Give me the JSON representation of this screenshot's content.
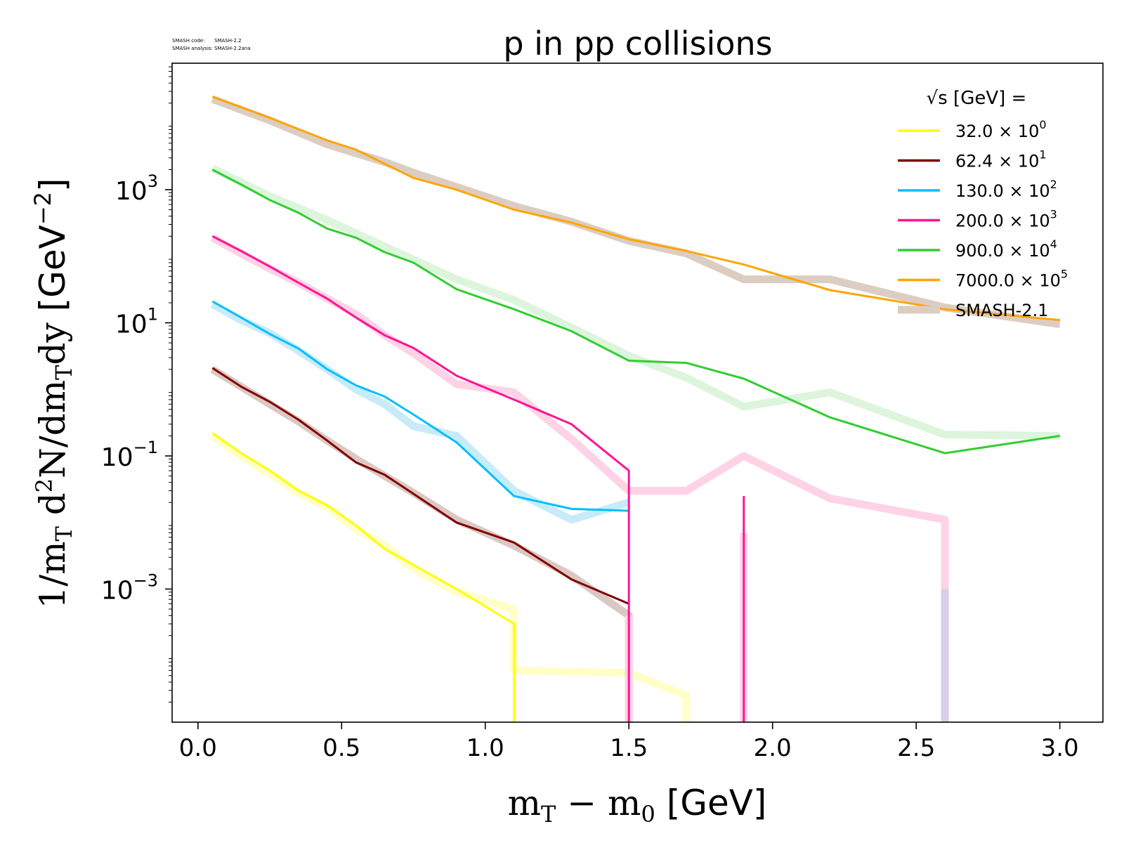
{
  "chart_data": {
    "type": "line",
    "title": "p in pp collisions",
    "watermark": {
      "line1_label": "SMASH code:",
      "line1_value": "SMASH-2.2",
      "line2_label": "SMASH analysis:",
      "line2_value": "SMASH-2.2ana"
    },
    "xlabel": "m_T − m_0 [GeV]",
    "ylabel": "1/m_T d²N/dm_T dy [GeV⁻²]",
    "xlim": [
      -0.09,
      3.15
    ],
    "ylim_log10": [
      -5,
      4.9
    ],
    "y_scale": "log",
    "x_ticks": [
      "0.0",
      "0.5",
      "1.0",
      "1.5",
      "2.0",
      "2.5",
      "3.0"
    ],
    "x_tick_values": [
      0,
      0.5,
      1.0,
      1.5,
      2.0,
      2.5,
      3.0
    ],
    "y_ticks": [
      {
        "base": "10",
        "exp": "3",
        "value": 3
      },
      {
        "base": "10",
        "exp": "1",
        "value": 1
      },
      {
        "base": "10",
        "exp": "−1",
        "value": -1
      },
      {
        "base": "10",
        "exp": "−3",
        "value": -3
      }
    ],
    "legend": {
      "position": "upper-right",
      "title": "√s [GeV] ="
    },
    "series": [
      {
        "name": "32.0 × 10",
        "exp": "0",
        "color": "#ffff00",
        "x": [
          0.05,
          0.15,
          0.25,
          0.35,
          0.45,
          0.55,
          0.65,
          0.75,
          0.9,
          1.1,
          1.1
        ],
        "y": [
          0.22,
          0.11,
          0.06,
          0.03,
          0.018,
          0.009,
          0.004,
          0.0023,
          0.001,
          0.0003,
          1e-05
        ]
      },
      {
        "name": "62.4 × 10",
        "exp": "1",
        "color": "#800000",
        "x": [
          0.05,
          0.15,
          0.25,
          0.35,
          0.45,
          0.55,
          0.65,
          0.75,
          0.9,
          1.1,
          1.3,
          1.5
        ],
        "y": [
          2.1,
          1.1,
          0.65,
          0.35,
          0.17,
          0.08,
          0.052,
          0.027,
          0.01,
          0.005,
          0.0014,
          0.0006
        ]
      },
      {
        "name": "130.0 × 10",
        "exp": "2",
        "color": "#00bfff",
        "x": [
          0.05,
          0.15,
          0.25,
          0.35,
          0.45,
          0.55,
          0.65,
          0.75,
          0.9,
          1.1,
          1.3,
          1.5
        ],
        "y": [
          21,
          12,
          6.8,
          4.1,
          2.0,
          1.15,
          0.78,
          0.42,
          0.16,
          0.025,
          0.016,
          0.015
        ]
      },
      {
        "name": "200.0 × 10",
        "exp": "3",
        "color": "#ff1493",
        "x": [
          0.05,
          0.15,
          0.25,
          0.35,
          0.45,
          0.55,
          0.65,
          0.75,
          0.9,
          1.1,
          1.3,
          1.5,
          1.5
        ],
        "y": [
          200,
          120,
          70,
          40,
          23,
          12,
          6.5,
          4.2,
          1.6,
          0.7,
          0.3,
          0.06,
          1e-05
        ]
      },
      {
        "name": "900.0 × 10",
        "exp": "4",
        "color": "#32cd32",
        "x": [
          0.05,
          0.15,
          0.25,
          0.35,
          0.45,
          0.55,
          0.65,
          0.75,
          0.9,
          1.1,
          1.3,
          1.5,
          1.7,
          1.9,
          2.2,
          2.6,
          3.0
        ],
        "y": [
          2000,
          1200,
          700,
          450,
          260,
          190,
          115,
          80,
          32,
          16,
          7.5,
          2.7,
          2.5,
          1.45,
          0.38,
          0.11,
          0.2
        ]
      },
      {
        "name": "7000.0 × 10",
        "exp": "5",
        "color": "#ffa500",
        "x": [
          0.05,
          0.25,
          0.45,
          0.55,
          0.75,
          0.9,
          1.1,
          1.3,
          1.5,
          1.7,
          1.9,
          2.2,
          2.6,
          3.0
        ],
        "y": [
          25000,
          12000,
          5500,
          4000,
          1500,
          1000,
          500,
          320,
          180,
          120,
          75,
          31,
          16,
          11
        ]
      }
    ],
    "reference": {
      "name": "SMASH-2.1",
      "color": "#dccdc3",
      "series": [
        {
          "color": "#ffffc8",
          "x": [
            0.05,
            0.15,
            0.25,
            0.35,
            0.45,
            0.55,
            0.65,
            0.75,
            0.9,
            1.1,
            1.1,
            1.5,
            1.7,
            1.7
          ],
          "y": [
            0.2,
            0.1,
            0.055,
            0.028,
            0.017,
            0.008,
            0.0045,
            0.002,
            0.0009,
            0.0005,
            6e-05,
            5.5e-05,
            2.5e-05,
            1e-05
          ]
        },
        {
          "color": "#dcc8c3",
          "x": [
            0.05,
            0.15,
            0.25,
            0.35,
            0.45,
            0.55,
            0.65,
            0.75,
            0.9,
            1.1,
            1.3,
            1.5,
            1.5
          ],
          "y": [
            2.0,
            1.1,
            0.6,
            0.33,
            0.17,
            0.09,
            0.05,
            0.028,
            0.011,
            0.0045,
            0.0016,
            0.0004,
            1e-05
          ]
        },
        {
          "color": "#c8ebfa",
          "x": [
            0.05,
            0.15,
            0.25,
            0.35,
            0.45,
            0.55,
            0.65,
            0.75,
            0.9,
            1.1,
            1.3,
            1.5
          ],
          "y": [
            19,
            11,
            7,
            3.8,
            2.0,
            1.0,
            0.6,
            0.28,
            0.2,
            0.03,
            0.011,
            0.02
          ]
        },
        {
          "color": "#ffd2e6",
          "x": [
            0.05,
            0.15,
            0.25,
            0.35,
            0.45,
            0.55,
            0.65,
            0.75,
            0.9,
            1.1,
            1.3,
            1.5,
            1.7,
            1.9,
            2.2,
            2.6,
            2.6
          ],
          "y": [
            190,
            110,
            65,
            40,
            23,
            13.5,
            6.5,
            3.5,
            1.2,
            0.9,
            0.18,
            0.03,
            0.03,
            0.1,
            0.023,
            0.011,
            1e-05
          ]
        },
        {
          "color": "#dcf5dc",
          "x": [
            0.05,
            0.25,
            0.45,
            0.65,
            0.9,
            1.1,
            1.3,
            1.5,
            1.7,
            1.9,
            2.2,
            2.6,
            3.0
          ],
          "y": [
            2100,
            800,
            350,
            140,
            45,
            22,
            8.5,
            3.2,
            1.5,
            0.55,
            0.9,
            0.21,
            0.2
          ]
        },
        {
          "color": "#dccdc3",
          "x": [
            0.05,
            0.25,
            0.45,
            0.65,
            0.75,
            0.9,
            1.1,
            1.3,
            1.5,
            1.7,
            1.9,
            2.2,
            2.6,
            3.0
          ],
          "y": [
            23000,
            11000,
            4800,
            2600,
            1800,
            1100,
            570,
            330,
            170,
            110,
            45,
            45,
            17,
            9.5
          ]
        },
        {
          "color": "#ffd2e6",
          "x": [
            1.9,
            1.9
          ],
          "y": [
            0.007,
            1e-05
          ]
        },
        {
          "color": "#ffd2e6",
          "x": [
            1.5,
            1.5
          ],
          "y": [
            0.0004,
            1e-05
          ]
        },
        {
          "color": "#d8d0e8",
          "x": [
            2.6,
            2.6
          ],
          "y": [
            0.001,
            1e-05
          ]
        }
      ],
      "extra_lines": [
        {
          "color": "#ff1493",
          "x": [
            1.9,
            1.9
          ],
          "y": [
            0.025,
            1e-05
          ]
        }
      ]
    }
  }
}
